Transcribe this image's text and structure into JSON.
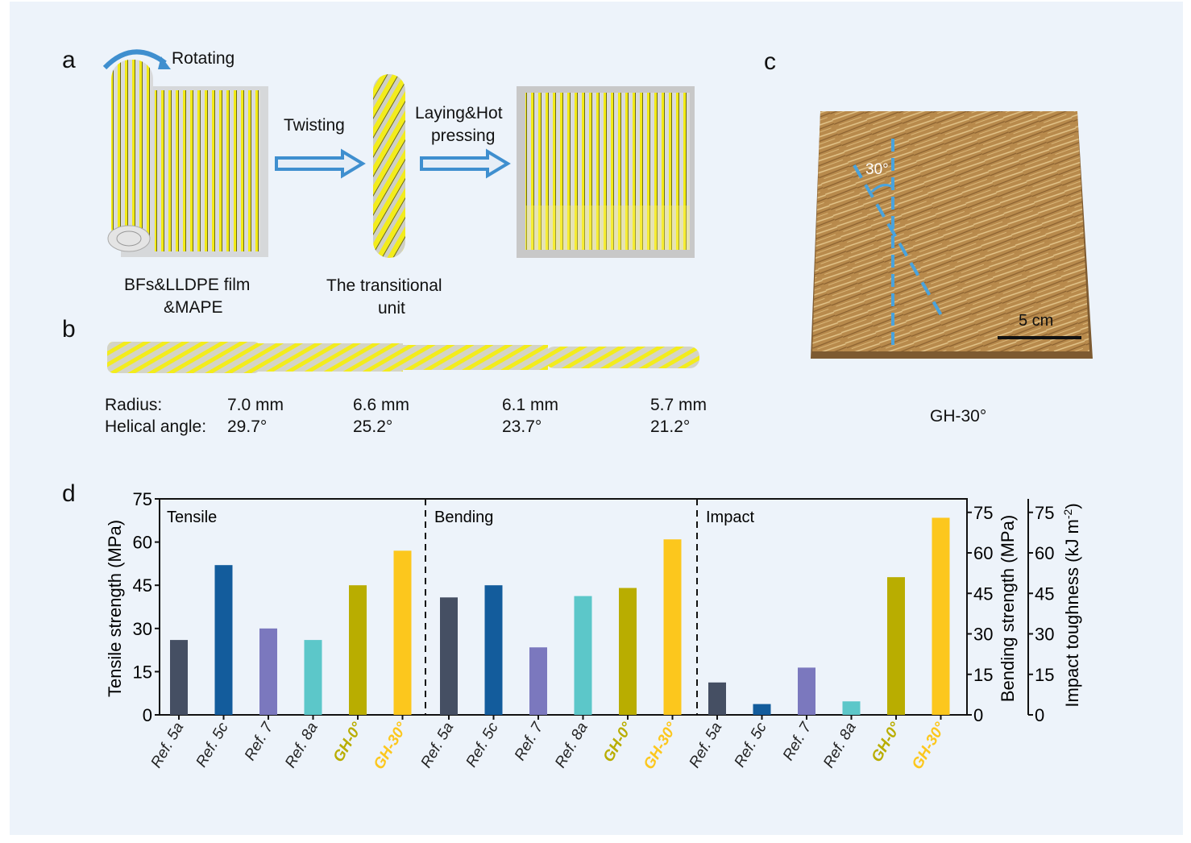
{
  "panels": {
    "a": {
      "label": "a",
      "rotating": "Rotating",
      "twisting": "Twisting",
      "laying_line1": "Laying&Hot",
      "laying_line2": "pressing",
      "materials_line1": "BFs&LLDPE film",
      "materials_line2": "&MAPE",
      "unit_line1": "The transitional",
      "unit_line2": "unit"
    },
    "b": {
      "label": "b",
      "radius_label": "Radius:",
      "angle_label": "Helical angle:",
      "columns": [
        {
          "radius": "7.0 mm",
          "angle": "29.7°"
        },
        {
          "radius": "6.6 mm",
          "angle": "25.2°"
        },
        {
          "radius": "6.1 mm",
          "angle": "23.7°"
        },
        {
          "radius": "5.7 mm",
          "angle": "21.2°"
        }
      ]
    },
    "c": {
      "label": "c",
      "angle_annotation": "30°",
      "scale_bar": "5 cm",
      "caption": "GH-30°"
    },
    "d": {
      "label": "d"
    }
  },
  "colors": {
    "background": "#edf3fa",
    "ref5a": "#454f63",
    "ref5c": "#135c9c",
    "ref7": "#7b78be",
    "ref8a": "#5cc7c9",
    "gh0": "#b9ad00",
    "gh30": "#fcc71d",
    "accent_blue": "#4aa3dc"
  },
  "chart_data": {
    "type": "bar",
    "categories": [
      "Ref. 5a",
      "Ref. 5c",
      "Ref. 7",
      "Ref. 8a",
      "GH-0°",
      "GH-30°"
    ],
    "groups": [
      {
        "name": "Tensile",
        "axis": "Tensile strength (MPa)",
        "values": [
          26,
          52,
          30,
          26,
          45,
          57
        ]
      },
      {
        "name": "Bending",
        "axis": "Bending strength (MPa)",
        "values": [
          43.5,
          48,
          25,
          44,
          47,
          65
        ]
      },
      {
        "name": "Impact",
        "axis": "Impact toughness (kJ m-2)",
        "values": [
          12,
          4,
          17.5,
          5,
          51,
          73
        ]
      }
    ],
    "axes": {
      "left": {
        "label": "Tensile strength (MPa)",
        "ylim": [
          0,
          75
        ],
        "ticks": [
          "0",
          "15",
          "30",
          "45",
          "60",
          "75"
        ]
      },
      "right1": {
        "label": "Bending strength (MPa)",
        "ylim": [
          0,
          80
        ],
        "ticks": [
          "0",
          "15",
          "30",
          "45",
          "60",
          "75"
        ]
      },
      "right2": {
        "label": "Impact toughness (kJ m",
        "label_sup": "-2",
        "label_end": ")",
        "ylim": [
          0,
          80
        ],
        "ticks": [
          "0",
          "15",
          "30",
          "45",
          "60",
          "75"
        ]
      }
    },
    "grid": false,
    "legend": "none"
  }
}
